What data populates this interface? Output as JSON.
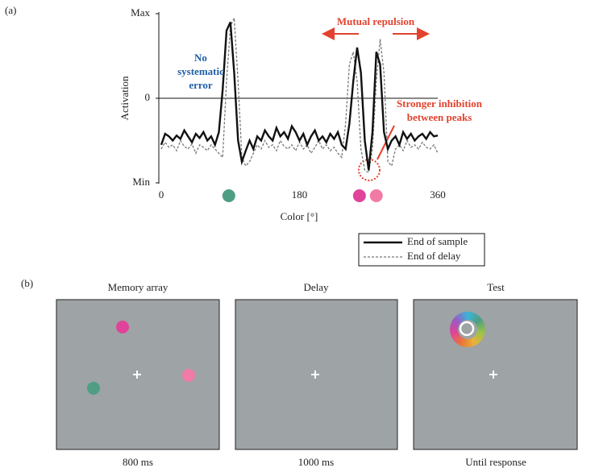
{
  "chart_data": {
    "type": "line",
    "panel_label": "(a)",
    "xlabel": "Color [°]",
    "ylabel": "Activation",
    "xlim": [
      0,
      360
    ],
    "xticks": [
      0,
      180,
      360
    ],
    "ylim": [
      -1,
      1
    ],
    "yticks": [
      {
        "value": -1,
        "label": "Min"
      },
      0,
      {
        "value": 1,
        "label": "Max"
      }
    ],
    "zero_line": true,
    "x": [
      0,
      5,
      10,
      15,
      20,
      25,
      30,
      35,
      40,
      45,
      50,
      55,
      60,
      65,
      70,
      75,
      80,
      85,
      90,
      95,
      100,
      105,
      110,
      115,
      120,
      125,
      130,
      135,
      140,
      145,
      150,
      155,
      160,
      165,
      170,
      175,
      180,
      185,
      190,
      195,
      200,
      205,
      210,
      215,
      220,
      225,
      230,
      235,
      240,
      245,
      250,
      255,
      260,
      265,
      270,
      275,
      280,
      285,
      290,
      295,
      300,
      305,
      310,
      315,
      320,
      325,
      330,
      335,
      340,
      345,
      350,
      355,
      360
    ],
    "series": [
      {
        "name": "End of sample",
        "color": "#111111",
        "dashed": false,
        "values": [
          -0.55,
          -0.42,
          -0.45,
          -0.5,
          -0.44,
          -0.48,
          -0.38,
          -0.45,
          -0.52,
          -0.42,
          -0.47,
          -0.4,
          -0.5,
          -0.45,
          -0.55,
          -0.4,
          0.1,
          0.8,
          0.9,
          0.3,
          -0.5,
          -0.75,
          -0.62,
          -0.5,
          -0.6,
          -0.45,
          -0.5,
          -0.38,
          -0.45,
          -0.5,
          -0.35,
          -0.45,
          -0.4,
          -0.48,
          -0.33,
          -0.4,
          -0.5,
          -0.42,
          -0.55,
          -0.45,
          -0.38,
          -0.5,
          -0.45,
          -0.52,
          -0.42,
          -0.48,
          -0.4,
          -0.55,
          -0.6,
          -0.3,
          0.2,
          0.6,
          0.3,
          -0.5,
          -0.85,
          -0.4,
          0.55,
          0.4,
          -0.4,
          -0.6,
          -0.5,
          -0.45,
          -0.55,
          -0.4,
          -0.48,
          -0.42,
          -0.5,
          -0.45,
          -0.42,
          -0.48,
          -0.4,
          -0.45,
          -0.44
        ]
      },
      {
        "name": "End of delay",
        "color": "#777777",
        "dashed": true,
        "values": [
          -0.6,
          -0.52,
          -0.58,
          -0.55,
          -0.62,
          -0.5,
          -0.57,
          -0.6,
          -0.54,
          -0.65,
          -0.55,
          -0.58,
          -0.62,
          -0.55,
          -0.6,
          -0.65,
          -0.7,
          0.2,
          0.85,
          0.95,
          0.2,
          -0.7,
          -0.8,
          -0.75,
          -0.65,
          -0.55,
          -0.6,
          -0.5,
          -0.58,
          -0.55,
          -0.62,
          -0.5,
          -0.57,
          -0.6,
          -0.55,
          -0.62,
          -0.52,
          -0.6,
          -0.55,
          -0.65,
          -0.58,
          -0.5,
          -0.6,
          -0.55,
          -0.62,
          -0.58,
          -0.65,
          -0.7,
          -0.3,
          0.4,
          0.55,
          0.2,
          -0.6,
          -0.85,
          -0.88,
          -0.6,
          0.2,
          0.7,
          0.3,
          -0.75,
          -0.8,
          -0.6,
          -0.55,
          -0.62,
          -0.5,
          -0.58,
          -0.55,
          -0.6,
          -0.52,
          -0.58,
          -0.6,
          -0.55,
          -0.65
        ]
      }
    ],
    "stimulus_x": [
      88,
      258,
      280
    ],
    "stimulus_colors": [
      "#4f9e83",
      "#e0449a",
      "#f07ca5"
    ],
    "annotations": [
      {
        "lines": [
          "No",
          "systematic",
          "error"
        ],
        "color": "#1f5fa6"
      },
      {
        "lines": [
          "Mutual repulsion"
        ],
        "color": "#e2422f"
      },
      {
        "lines": [
          "Stronger inhibition",
          "between peaks"
        ],
        "color": "#e2422f"
      }
    ]
  },
  "figure_b": {
    "panel_label": "(b)",
    "panels": [
      {
        "title": "Memory array",
        "duration": "800 ms"
      },
      {
        "title": "Delay",
        "duration": "1000 ms"
      },
      {
        "title": "Test",
        "duration": "Until response"
      }
    ]
  }
}
